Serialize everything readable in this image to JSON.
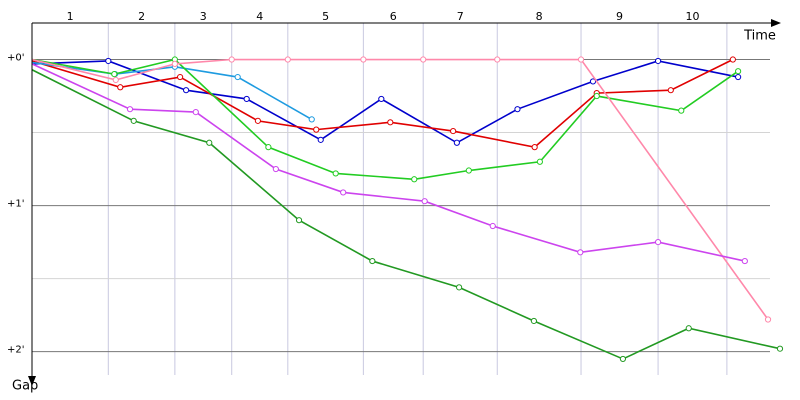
{
  "chart_data": {
    "type": "line",
    "x_label": "Time",
    "y_label": "Gap",
    "xlim": [
      0,
      100
    ],
    "ylim": [
      -0.25,
      2.16
    ],
    "y_inverted": true,
    "yticks": [
      {
        "value": 0,
        "label": "+0'"
      },
      {
        "value": 1,
        "label": "+1'"
      },
      {
        "value": 2,
        "label": "+2'"
      }
    ],
    "minor_yticks": [
      0.5,
      1.5
    ],
    "lap_labels": [
      "1",
      "2",
      "3",
      "4",
      "5",
      "6",
      "7",
      "8",
      "9",
      "10"
    ],
    "lap_boundaries": [
      0,
      10.2,
      19.1,
      26.7,
      34.2,
      44.3,
      52.3,
      62.2,
      73.4,
      83.7,
      92.9
    ],
    "grid": true,
    "series": [
      {
        "color": "#0000cc",
        "x": [
          0,
          10.2,
          20.6,
          28.7,
          38.6,
          46.7,
          56.8,
          64.9,
          75.0,
          83.7,
          94.4
        ],
        "values": [
          0.03,
          0.01,
          0.21,
          0.27,
          0.55,
          0.27,
          0.57,
          0.34,
          0.15,
          0.01,
          0.12
        ]
      },
      {
        "color": "#e00000",
        "x": [
          0,
          11.8,
          19.8,
          30.2,
          38.0,
          47.9,
          56.3,
          67.2,
          75.5,
          85.4,
          93.7
        ],
        "values": [
          0.01,
          0.19,
          0.12,
          0.42,
          0.48,
          0.43,
          0.49,
          0.6,
          0.23,
          0.21,
          0.0
        ]
      },
      {
        "color": "#1e9be0",
        "x": [
          0,
          11.1,
          19.1,
          27.5,
          37.4
        ],
        "values": [
          0.02,
          0.1,
          0.05,
          0.12,
          0.41
        ]
      },
      {
        "color": "#22cc22",
        "x": [
          0,
          11.0,
          19.1,
          31.6,
          40.6,
          51.1,
          58.4,
          67.9,
          75.5,
          86.8,
          94.4
        ],
        "values": [
          0,
          0.1,
          0,
          0.6,
          0.78,
          0.82,
          0.76,
          0.7,
          0.25,
          0.35,
          0.08
        ]
      },
      {
        "color": "#ff88aa",
        "x": [
          0,
          11.2,
          19.1,
          26.7,
          34.2,
          44.3,
          52.3,
          62.2,
          73.4,
          98.4
        ],
        "values": [
          0,
          0.14,
          0.03,
          0,
          0,
          0,
          0,
          0,
          0,
          1.78
        ]
      },
      {
        "color": "#cc44ee",
        "x": [
          0,
          13.1,
          21.9,
          32.6,
          41.6,
          52.5,
          61.6,
          73.3,
          83.7,
          95.3
        ],
        "values": [
          0.03,
          0.34,
          0.36,
          0.75,
          0.91,
          0.97,
          1.14,
          1.32,
          1.25,
          1.38
        ]
      },
      {
        "color": "#229922",
        "x": [
          0,
          13.6,
          23.7,
          35.7,
          45.5,
          57.1,
          67.1,
          79.0,
          87.8,
          100
        ],
        "values": [
          0.07,
          0.42,
          0.57,
          1.1,
          1.38,
          1.56,
          1.79,
          2.05,
          1.84,
          1.98
        ]
      }
    ]
  }
}
